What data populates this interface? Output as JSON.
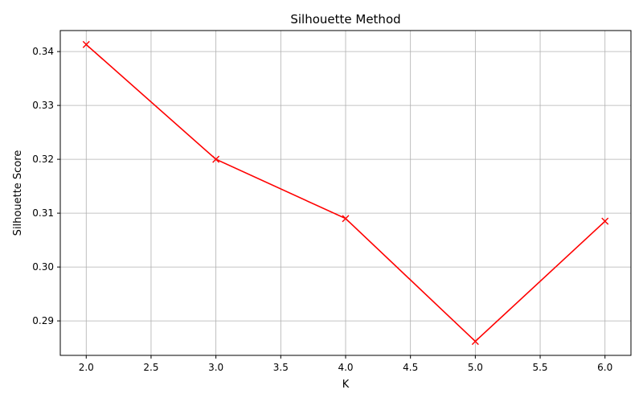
{
  "chart_data": {
    "type": "line",
    "title": "Silhouette Method",
    "xlabel": "K",
    "ylabel": "Silhouette Score",
    "x": [
      2,
      3,
      4,
      5,
      6
    ],
    "series": [
      {
        "values": [
          0.3413,
          0.32,
          0.309,
          0.2862,
          0.3085
        ],
        "color": "#ff0000",
        "marker": "x"
      }
    ],
    "xlim": [
      1.8,
      6.2
    ],
    "ylim": [
      0.2836,
      0.3439
    ],
    "xticks": [
      2.0,
      2.5,
      3.0,
      3.5,
      4.0,
      4.5,
      5.0,
      5.5,
      6.0
    ],
    "xtick_labels": [
      "2.0",
      "2.5",
      "3.0",
      "3.5",
      "4.0",
      "4.5",
      "5.0",
      "5.5",
      "6.0"
    ],
    "yticks": [
      0.29,
      0.3,
      0.31,
      0.32,
      0.33,
      0.34
    ],
    "ytick_labels": [
      "0.29",
      "0.30",
      "0.31",
      "0.32",
      "0.33",
      "0.34"
    ],
    "grid": true,
    "grid_color": "#b0b0b0",
    "axis_color": "#000000"
  }
}
